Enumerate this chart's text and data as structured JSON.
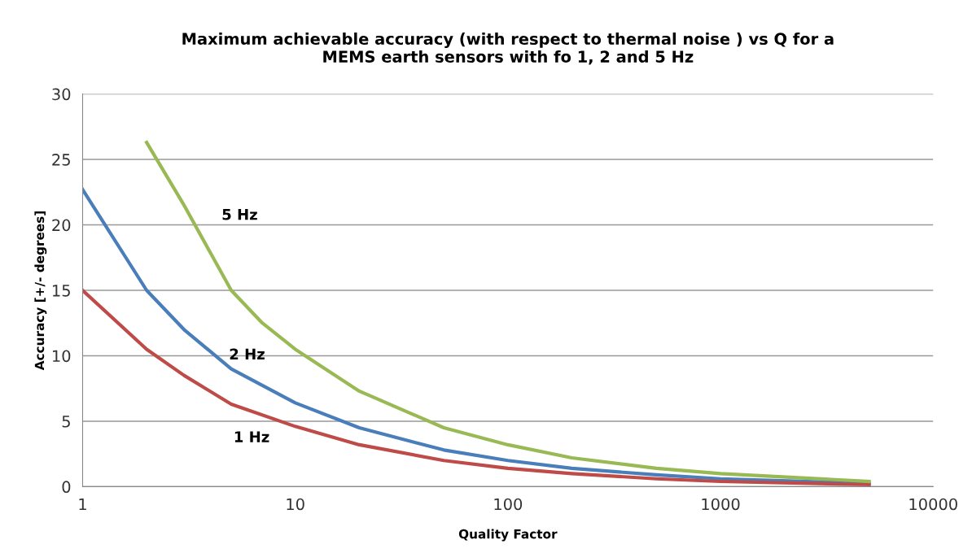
{
  "chart_data": {
    "type": "line",
    "title": "Maximum achievable accuracy (with respect to thermal noise ) vs Q for a\nMEMS earth sensors with fo 1, 2 and 5 Hz",
    "xlabel": "Quality Factor",
    "ylabel": "Accuracy [+/- degrees]",
    "log": "x",
    "xlim": [
      1,
      10000
    ],
    "xticks": [
      1,
      10,
      100,
      1000,
      10000
    ],
    "ylim": [
      0,
      30
    ],
    "yticks": [
      0,
      5,
      10,
      15,
      20,
      25,
      30
    ],
    "grid": "y",
    "legend": false,
    "marker": "none",
    "line_style": "solid",
    "series": [
      {
        "name": "2 Hz",
        "color": "#4a7ebb",
        "x": [
          1,
          2,
          3,
          5,
          10,
          20,
          50,
          100,
          200,
          500,
          1000,
          5000
        ],
        "values": [
          22.7,
          15,
          12,
          9.0,
          6.4,
          4.5,
          2.8,
          2.0,
          1.4,
          0.9,
          0.6,
          0.25
        ]
      },
      {
        "name": "1 Hz",
        "color": "#be4b48",
        "x": [
          1,
          2,
          3,
          5,
          10,
          20,
          50,
          100,
          200,
          500,
          1000,
          5000
        ],
        "values": [
          15,
          10.5,
          8.5,
          6.3,
          4.6,
          3.2,
          2.0,
          1.4,
          1.0,
          0.6,
          0.4,
          0.15
        ]
      },
      {
        "name": "5 Hz",
        "color": "#98b954",
        "x": [
          2,
          3,
          5,
          7,
          10,
          20,
          50,
          100,
          200,
          500,
          1000,
          5000
        ],
        "values": [
          26.3,
          21.5,
          15,
          12.5,
          10.5,
          7.3,
          4.5,
          3.2,
          2.2,
          1.4,
          1.0,
          0.4
        ]
      }
    ]
  }
}
